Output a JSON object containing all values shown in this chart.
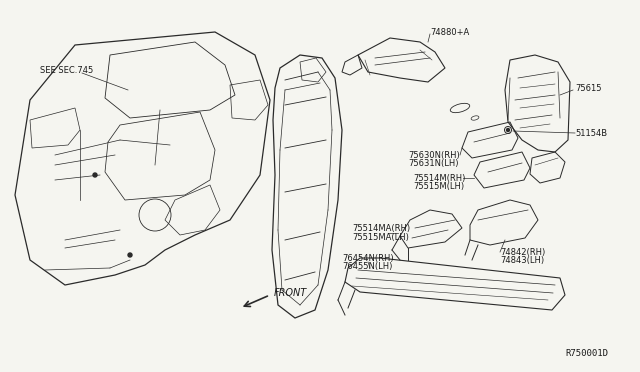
{
  "background_color": "#f5f5f0",
  "line_color": "#2a2a2a",
  "text_color": "#1a1a1a",
  "font_size_label": 6.0,
  "figsize": [
    6.4,
    3.72
  ],
  "dpi": 100,
  "parts": {
    "see_sec": "SEE SEC.745",
    "p74880": "74880+A",
    "p75615": "75615",
    "p51154B": "51154B",
    "p75630N": "75630N(RH)",
    "p75631N": "75631N(LH)",
    "p75514M": "75514M(RH)",
    "p75515M": "75515M(LH)",
    "p75514MA": "75514MA(RH)",
    "p75515MA": "75515MA(LH)",
    "p74842": "74842(RH)",
    "p74843": "74843(LH)",
    "p76454N": "76454N(RH)",
    "p76455N": "76455N(LH)",
    "front": "FRONT",
    "ref_code": "R750001D"
  }
}
